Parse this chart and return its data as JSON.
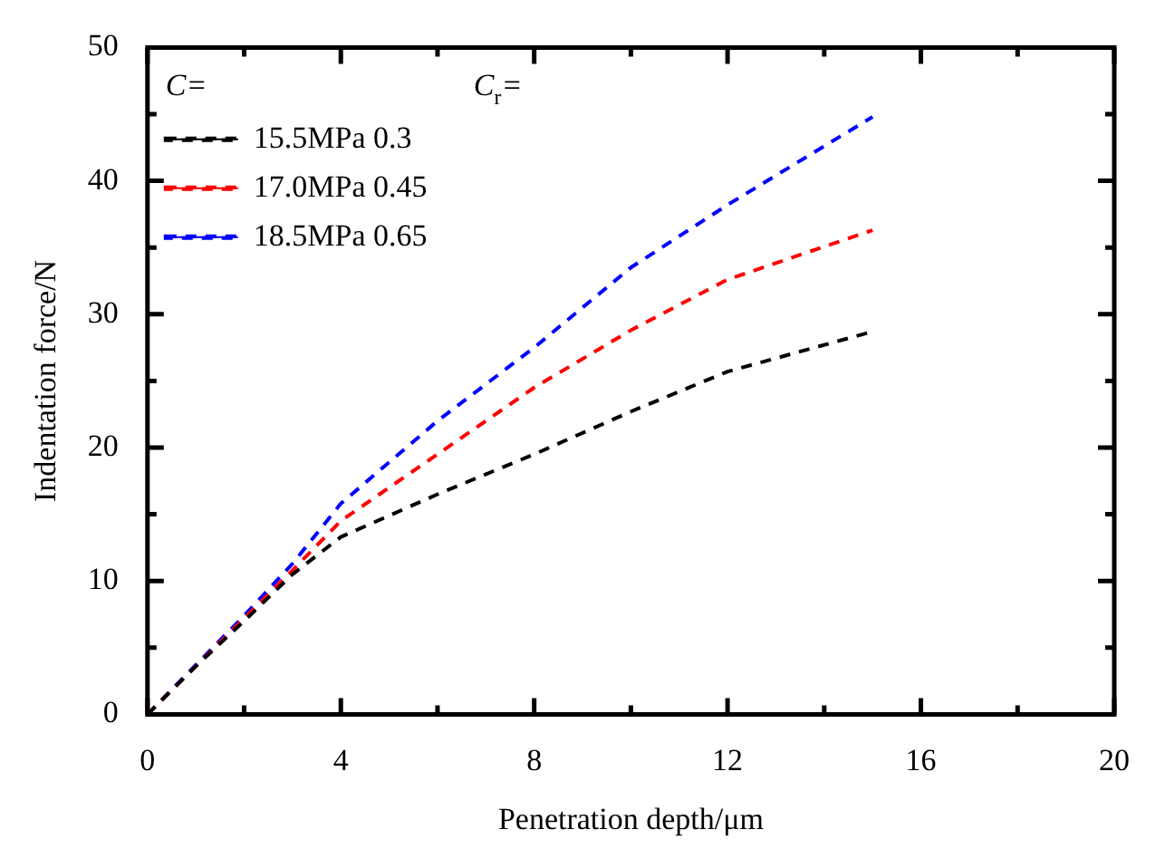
{
  "chart_data": {
    "type": "line",
    "xlabel": "Penetration depth/μm",
    "ylabel": "Indentation force/N",
    "legend_title": "C= C$_{r}$=",
    "xlim": [
      0,
      20
    ],
    "xticks": [
      0,
      {
        "value": 2,
        "label": null
      },
      4,
      {
        "value": 6,
        "label": null
      },
      8,
      {
        "value": 10,
        "label": null
      },
      12,
      {
        "value": 14,
        "label": null
      },
      16,
      {
        "value": 18,
        "label": null
      },
      20
    ],
    "ylim": [
      0,
      50
    ],
    "yticks": [
      0,
      {
        "value": 5,
        "label": null
      },
      10,
      {
        "value": 15,
        "label": null
      },
      20,
      {
        "value": 25,
        "label": null
      },
      30,
      {
        "value": 35,
        "label": null
      },
      40,
      {
        "value": 45,
        "label": null
      },
      50
    ],
    "grid": false,
    "legend": "top left",
    "marker": "none",
    "line_style": "dashed",
    "x": [
      0,
      1,
      2,
      3,
      4,
      6,
      8,
      10,
      12,
      15
    ],
    "series": [
      {
        "name": "15.5MPa 0.3",
        "color": "#000000",
        "values": [
          0,
          3.6,
          7,
          10.5,
          13.3,
          16.5,
          19.5,
          22.7,
          25.7,
          28.7
        ]
      },
      {
        "name": "17.0MPa 0.45",
        "color": "#ff0000",
        "values": [
          0,
          3.6,
          7.2,
          10.8,
          14.5,
          19.5,
          24.5,
          28.8,
          32.6,
          36.3
        ]
      },
      {
        "name": "18.5MPa 0.65",
        "color": "#0000ff",
        "values": [
          0,
          3.7,
          7.4,
          11.3,
          15.8,
          22,
          27.5,
          33.5,
          38.2,
          44.8
        ]
      }
    ]
  }
}
